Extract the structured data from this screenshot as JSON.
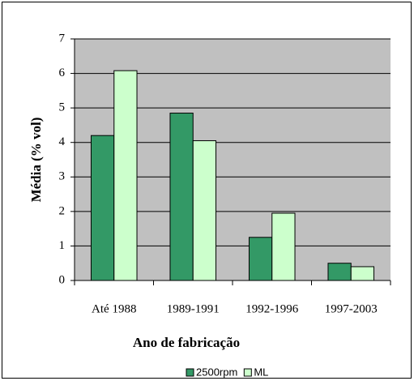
{
  "chart_data": {
    "type": "bar",
    "categories": [
      "Até 1988",
      "1989-1991",
      "1992-1996",
      "1997-2003"
    ],
    "series": [
      {
        "name": "2500rpm",
        "color": "#339966",
        "values": [
          4.2,
          4.85,
          1.25,
          0.5
        ]
      },
      {
        "name": "ML",
        "color": "#ccffcc",
        "values": [
          6.08,
          4.05,
          1.95,
          0.4
        ]
      }
    ],
    "x_label": "Ano de fabricação",
    "y_label": "Média (% vol)",
    "ylim": [
      0,
      7
    ],
    "yticks": [
      0,
      1,
      2,
      3,
      4,
      5,
      6,
      7
    ],
    "grid": true,
    "legend": "bottom"
  }
}
